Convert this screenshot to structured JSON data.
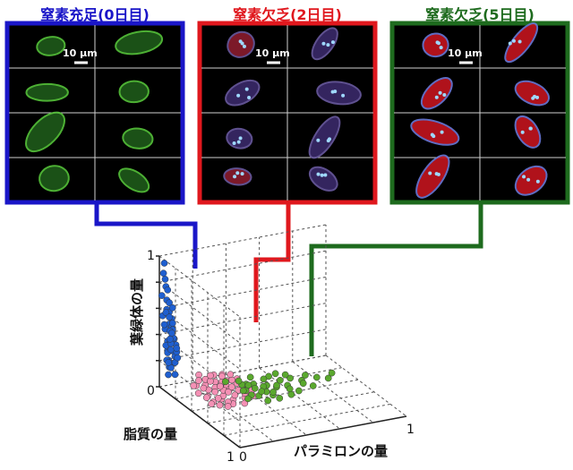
{
  "colors": {
    "blue": "#1a16c8",
    "red": "#e0181e",
    "green": "#1e6b1e",
    "dot_blue": "#1f5fd0",
    "dot_pink": "#f490b4",
    "dot_green": "#5aa82e"
  },
  "panels": [
    {
      "title": "窒素充足(0日目)",
      "color": "#1a16c8",
      "scale_label": "10 µm",
      "cells": "green"
    },
    {
      "title": "窒素欠乏(2日目)",
      "color": "#e0181e",
      "scale_label": "10 µm",
      "cells": "mixed"
    },
    {
      "title": "窒素欠乏(5日目)",
      "color": "#1e6b1e",
      "scale_label": "10 µm",
      "cells": "red"
    }
  ],
  "chart_data": {
    "type": "scatter",
    "dimensions": 3,
    "zlabel": "葉緑体の量",
    "xlabel": "パラミロンの量",
    "ylabel": "脂質の量",
    "z_ticks": [
      "1",
      "0"
    ],
    "x_ticks": [
      "0",
      "1"
    ],
    "y_ticks": [
      "0",
      "1"
    ],
    "zlim": [
      0,
      1
    ],
    "xlim": [
      0,
      1
    ],
    "ylim": [
      0,
      1
    ],
    "grid": true,
    "series": [
      {
        "name": "窒素充足(0日目)",
        "color": "#1f5fd0",
        "points": [
          [
            0.02,
            0.02,
            0.95
          ],
          [
            0.01,
            0.03,
            0.88
          ],
          [
            0.03,
            0.01,
            0.82
          ],
          [
            0.02,
            0.04,
            0.78
          ],
          [
            0.04,
            0.02,
            0.74
          ],
          [
            0.01,
            0.01,
            0.7
          ],
          [
            0.03,
            0.03,
            0.67
          ],
          [
            0.05,
            0.02,
            0.64
          ],
          [
            0.02,
            0.05,
            0.61
          ],
          [
            0.04,
            0.04,
            0.58
          ],
          [
            0.01,
            0.02,
            0.55
          ],
          [
            0.06,
            0.03,
            0.52
          ],
          [
            0.03,
            0.06,
            0.5
          ],
          [
            0.05,
            0.05,
            0.47
          ],
          [
            0.02,
            0.03,
            0.45
          ],
          [
            0.07,
            0.02,
            0.43
          ],
          [
            0.04,
            0.07,
            0.4
          ],
          [
            0.06,
            0.06,
            0.38
          ],
          [
            0.03,
            0.04,
            0.36
          ],
          [
            0.05,
            0.03,
            0.34
          ],
          [
            0.08,
            0.04,
            0.32
          ],
          [
            0.02,
            0.06,
            0.3
          ],
          [
            0.06,
            0.05,
            0.28
          ],
          [
            0.04,
            0.02,
            0.26
          ],
          [
            0.07,
            0.06,
            0.24
          ],
          [
            0.03,
            0.05,
            0.22
          ],
          [
            0.05,
            0.07,
            0.2
          ],
          [
            0.08,
            0.03,
            0.18
          ],
          [
            0.04,
            0.04,
            0.16
          ],
          [
            0.06,
            0.02,
            0.14
          ],
          [
            0.02,
            0.07,
            0.12
          ],
          [
            0.07,
            0.05,
            0.1
          ],
          [
            0.05,
            0.06,
            0.62
          ],
          [
            0.03,
            0.02,
            0.57
          ],
          [
            0.06,
            0.04,
            0.49
          ],
          [
            0.04,
            0.05,
            0.44
          ],
          [
            0.07,
            0.03,
            0.37
          ],
          [
            0.02,
            0.04,
            0.33
          ],
          [
            0.05,
            0.04,
            0.29
          ],
          [
            0.06,
            0.07,
            0.25
          ],
          [
            0.03,
            0.03,
            0.21
          ],
          [
            0.08,
            0.05,
            0.27
          ],
          [
            0.04,
            0.06,
            0.35
          ],
          [
            0.06,
            0.03,
            0.41
          ],
          [
            0.02,
            0.02,
            0.48
          ],
          [
            0.05,
            0.02,
            0.53
          ],
          [
            0.07,
            0.07,
            0.31
          ],
          [
            0.03,
            0.07,
            0.39
          ],
          [
            0.08,
            0.06,
            0.23
          ],
          [
            0.04,
            0.03,
            0.19
          ]
        ]
      },
      {
        "name": "窒素欠乏(2日目)",
        "color": "#f490b4",
        "points": [
          [
            0.1,
            0.25,
            0.1
          ],
          [
            0.15,
            0.3,
            0.08
          ],
          [
            0.2,
            0.28,
            0.12
          ],
          [
            0.12,
            0.35,
            0.06
          ],
          [
            0.25,
            0.32,
            0.09
          ],
          [
            0.18,
            0.4,
            0.05
          ],
          [
            0.22,
            0.22,
            0.14
          ],
          [
            0.3,
            0.36,
            0.07
          ],
          [
            0.14,
            0.28,
            0.11
          ],
          [
            0.28,
            0.26,
            0.1
          ],
          [
            0.08,
            0.32,
            0.08
          ],
          [
            0.24,
            0.42,
            0.04
          ],
          [
            0.32,
            0.3,
            0.09
          ],
          [
            0.16,
            0.24,
            0.13
          ],
          [
            0.2,
            0.38,
            0.06
          ],
          [
            0.26,
            0.34,
            0.08
          ],
          [
            0.12,
            0.42,
            0.05
          ],
          [
            0.34,
            0.38,
            0.06
          ],
          [
            0.18,
            0.32,
            0.1
          ],
          [
            0.22,
            0.46,
            0.03
          ],
          [
            0.28,
            0.2,
            0.12
          ],
          [
            0.1,
            0.38,
            0.07
          ],
          [
            0.3,
            0.44,
            0.05
          ],
          [
            0.14,
            0.2,
            0.15
          ],
          [
            0.24,
            0.28,
            0.11
          ],
          [
            0.36,
            0.32,
            0.07
          ],
          [
            0.16,
            0.36,
            0.09
          ],
          [
            0.2,
            0.44,
            0.04
          ],
          [
            0.26,
            0.24,
            0.13
          ],
          [
            0.12,
            0.3,
            0.1
          ],
          [
            0.32,
            0.4,
            0.06
          ],
          [
            0.18,
            0.26,
            0.12
          ],
          [
            0.22,
            0.34,
            0.08
          ],
          [
            0.08,
            0.26,
            0.11
          ],
          [
            0.28,
            0.48,
            0.03
          ],
          [
            0.34,
            0.26,
            0.1
          ],
          [
            0.14,
            0.46,
            0.04
          ],
          [
            0.24,
            0.36,
            0.07
          ],
          [
            0.3,
            0.28,
            0.11
          ],
          [
            0.16,
            0.4,
            0.06
          ],
          [
            0.38,
            0.36,
            0.05
          ],
          [
            0.2,
            0.22,
            0.14
          ],
          [
            0.26,
            0.4,
            0.06
          ],
          [
            0.1,
            0.44,
            0.05
          ],
          [
            0.32,
            0.22,
            0.12
          ],
          [
            0.18,
            0.48,
            0.03
          ],
          [
            0.36,
            0.42,
            0.04
          ],
          [
            0.22,
            0.3,
            0.09
          ],
          [
            0.12,
            0.24,
            0.13
          ],
          [
            0.28,
            0.32,
            0.08
          ]
        ]
      },
      {
        "name": "窒素欠乏(5日目)",
        "color": "#5aa82e",
        "points": [
          [
            0.3,
            0.2,
            0.06
          ],
          [
            0.4,
            0.25,
            0.04
          ],
          [
            0.35,
            0.35,
            0.05
          ],
          [
            0.5,
            0.3,
            0.03
          ],
          [
            0.45,
            0.4,
            0.04
          ],
          [
            0.6,
            0.35,
            0.03
          ],
          [
            0.38,
            0.45,
            0.05
          ],
          [
            0.55,
            0.22,
            0.05
          ],
          [
            0.42,
            0.3,
            0.06
          ],
          [
            0.65,
            0.28,
            0.04
          ],
          [
            0.48,
            0.5,
            0.03
          ],
          [
            0.32,
            0.38,
            0.07
          ],
          [
            0.58,
            0.42,
            0.04
          ],
          [
            0.7,
            0.32,
            0.03
          ],
          [
            0.36,
            0.28,
            0.06
          ],
          [
            0.52,
            0.38,
            0.05
          ],
          [
            0.44,
            0.22,
            0.07
          ],
          [
            0.62,
            0.45,
            0.03
          ],
          [
            0.4,
            0.52,
            0.04
          ],
          [
            0.75,
            0.26,
            0.03
          ],
          [
            0.46,
            0.34,
            0.05
          ],
          [
            0.56,
            0.48,
            0.03
          ],
          [
            0.34,
            0.44,
            0.06
          ],
          [
            0.68,
            0.38,
            0.04
          ],
          [
            0.5,
            0.26,
            0.06
          ],
          [
            0.8,
            0.3,
            0.02
          ],
          [
            0.38,
            0.32,
            0.07
          ],
          [
            0.6,
            0.2,
            0.05
          ],
          [
            0.42,
            0.4,
            0.05
          ],
          [
            0.72,
            0.42,
            0.03
          ],
          [
            0.54,
            0.34,
            0.04
          ],
          [
            0.3,
            0.48,
            0.06
          ],
          [
            0.64,
            0.24,
            0.05
          ],
          [
            0.46,
            0.46,
            0.04
          ],
          [
            0.85,
            0.34,
            0.02
          ],
          [
            0.36,
            0.24,
            0.07
          ],
          [
            0.58,
            0.3,
            0.05
          ],
          [
            0.48,
            0.42,
            0.04
          ],
          [
            0.9,
            0.28,
            0.02
          ],
          [
            0.4,
            0.36,
            0.06
          ]
        ]
      }
    ]
  }
}
